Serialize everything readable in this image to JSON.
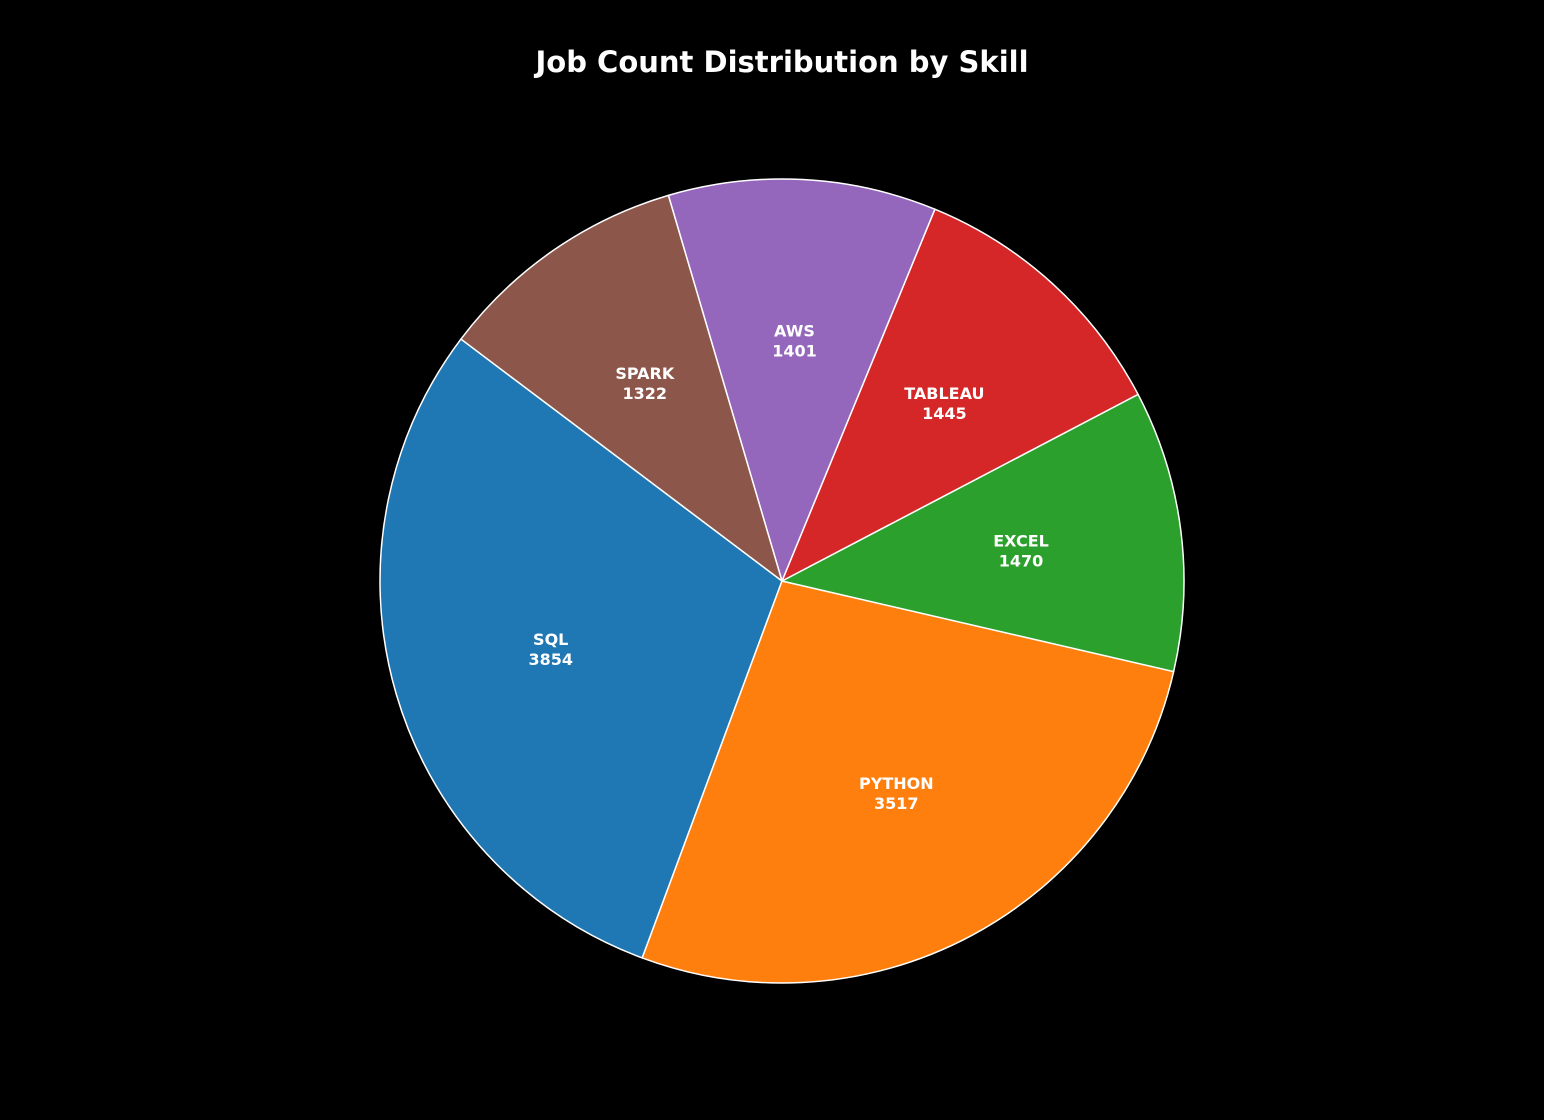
{
  "chart_data": {
    "type": "pie",
    "title": "Job Count Distribution by Skill",
    "start_angle_deg": 143,
    "direction": "counterclockwise",
    "edge_color": "#ffffff",
    "slices": [
      {
        "label": "SQL",
        "value": 3854,
        "color": "#1f77b4"
      },
      {
        "label": "PYTHON",
        "value": 3517,
        "color": "#ff7f0e"
      },
      {
        "label": "EXCEL",
        "value": 1470,
        "color": "#2ca02c"
      },
      {
        "label": "TABLEAU",
        "value": 1445,
        "color": "#d62728"
      },
      {
        "label": "AWS",
        "value": 1401,
        "color": "#9467bd"
      },
      {
        "label": "SPARK",
        "value": 1322,
        "color": "#8c564b"
      }
    ]
  }
}
